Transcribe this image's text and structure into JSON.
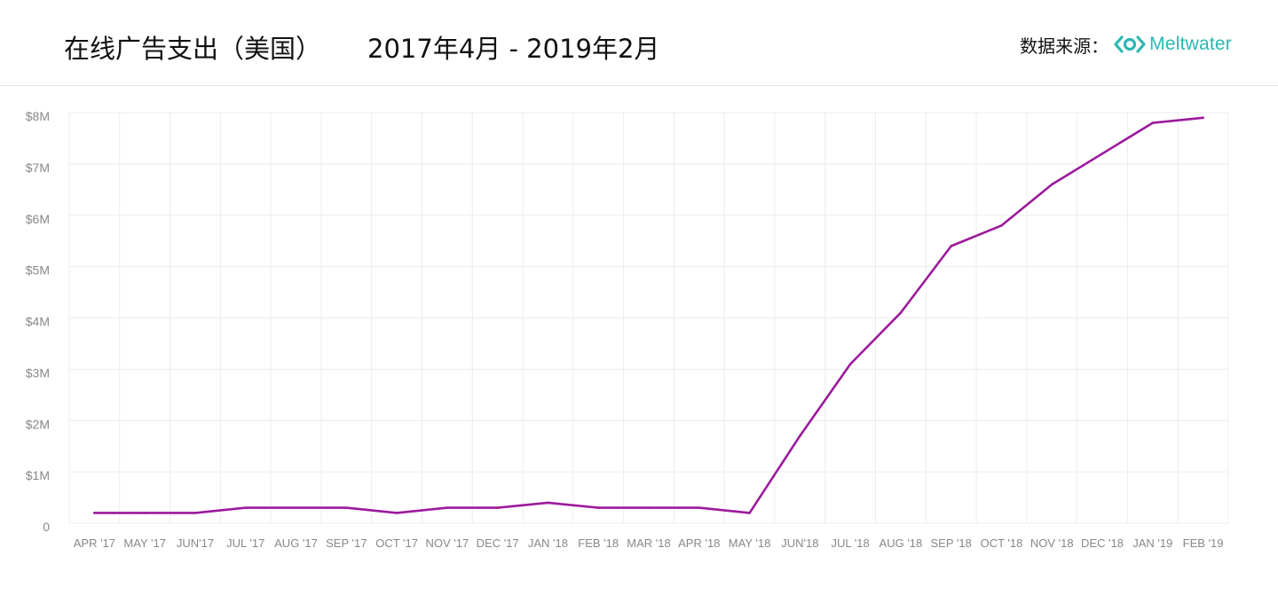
{
  "header": {
    "title": "在线广告支出（美国）",
    "period": "2017年4月 - 2019年2月",
    "source_label": "数据来源：",
    "brand_icon": "meltwater-logo-icon",
    "brand_name": "Meltwater",
    "brand_color": "#2bb7b3"
  },
  "chart_data": {
    "type": "line",
    "title": "在线广告支出（美国）",
    "subtitle": "2017年4月 - 2019年2月",
    "categories": [
      "APR '17",
      "MAY '17",
      "JUN'17",
      "JUL '17",
      "AUG '17",
      "SEP '17",
      "OCT '17",
      "NOV '17",
      "DEC '17",
      "JAN '18",
      "FEB '18",
      "MAR '18",
      "APR '18",
      "MAY '18",
      "JUN'18",
      "JUL '18",
      "AUG '18",
      "SEP '18",
      "OCT '18",
      "NOV '18",
      "DEC '18",
      "JAN '19",
      "FEB '19"
    ],
    "y_tick_labels": [
      "0",
      "$1M",
      "$2M",
      "$3M",
      "$4M",
      "$5M",
      "$6M",
      "$7M",
      "$8M"
    ],
    "series": [
      {
        "color": "#9c1a9c",
        "values": [
          0.2,
          0.2,
          0.2,
          0.3,
          0.3,
          0.3,
          0.2,
          0.3,
          0.3,
          0.4,
          0.3,
          0.3,
          0.3,
          0.2,
          1.7,
          3.1,
          4.1,
          5.4,
          5.8,
          6.6,
          7.2,
          7.8,
          7.9
        ]
      }
    ],
    "xlabel": "",
    "ylabel": "",
    "ylim": [
      0,
      8
    ],
    "grid": true,
    "legend": "none"
  }
}
